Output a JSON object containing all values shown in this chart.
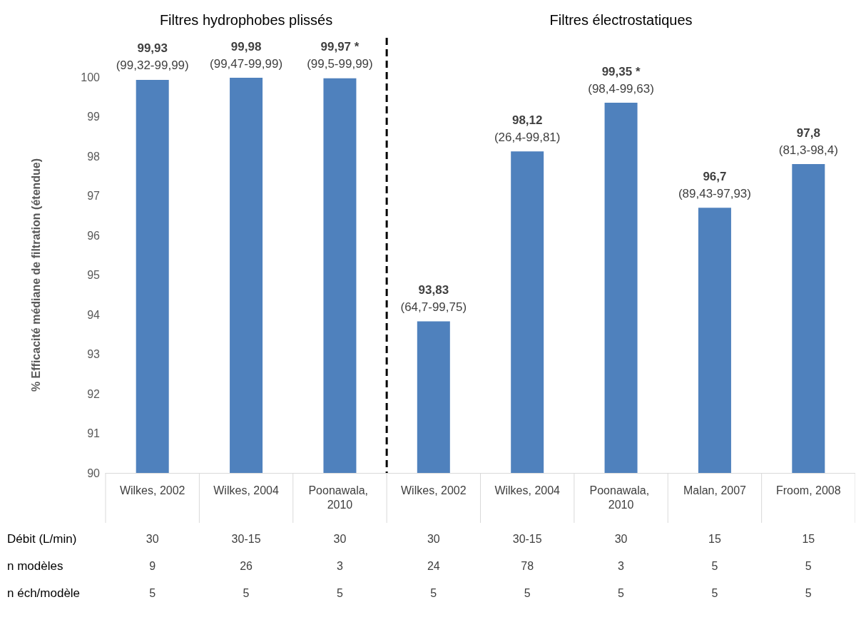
{
  "chart_data": {
    "type": "bar",
    "ylabel": "% Efficacité médiane de filtration (étendue)",
    "categories": [
      "Wilkes, 2002",
      "Wilkes, 2004",
      "Poonawala, 2010",
      "Wilkes, 2002",
      "Wilkes, 2004",
      "Poonawala, 2010",
      "Malan, 2007",
      "Froom, 2008"
    ],
    "values": [
      99.93,
      99.98,
      99.97,
      93.83,
      98.12,
      99.35,
      96.7,
      97.8
    ],
    "value_labels": [
      "99,93\n(99,32-99,99)",
      "99,98\n(99,47-99,99)",
      "99,97 *\n(99,5-99,99)",
      "93,83\n(64,7-99,75)",
      "98,12\n(26,4-99,81)",
      "99,35 *\n(98,4-99,63)",
      "96,7\n(89,43-97,93)",
      "97,8\n(81,3-98,4)"
    ],
    "color": "#4f81bd",
    "ylim": [
      90,
      100
    ],
    "yticks": [
      90,
      91,
      92,
      93,
      94,
      95,
      96,
      97,
      98,
      99,
      100
    ],
    "grid": false,
    "annotations": [
      "Filtres hydrophobes plissés",
      "Filtres électrostatiques",
      "Débit (L/min)",
      "30",
      "30-15",
      "30",
      "30",
      "30-15",
      "30",
      "15",
      "15",
      "n modèles",
      "9",
      "26",
      "3",
      "24",
      "78",
      "3",
      "5",
      "5",
      "n éch/modèle",
      "5",
      "5",
      "5",
      "5",
      "5",
      "5",
      "5",
      "5"
    ]
  }
}
